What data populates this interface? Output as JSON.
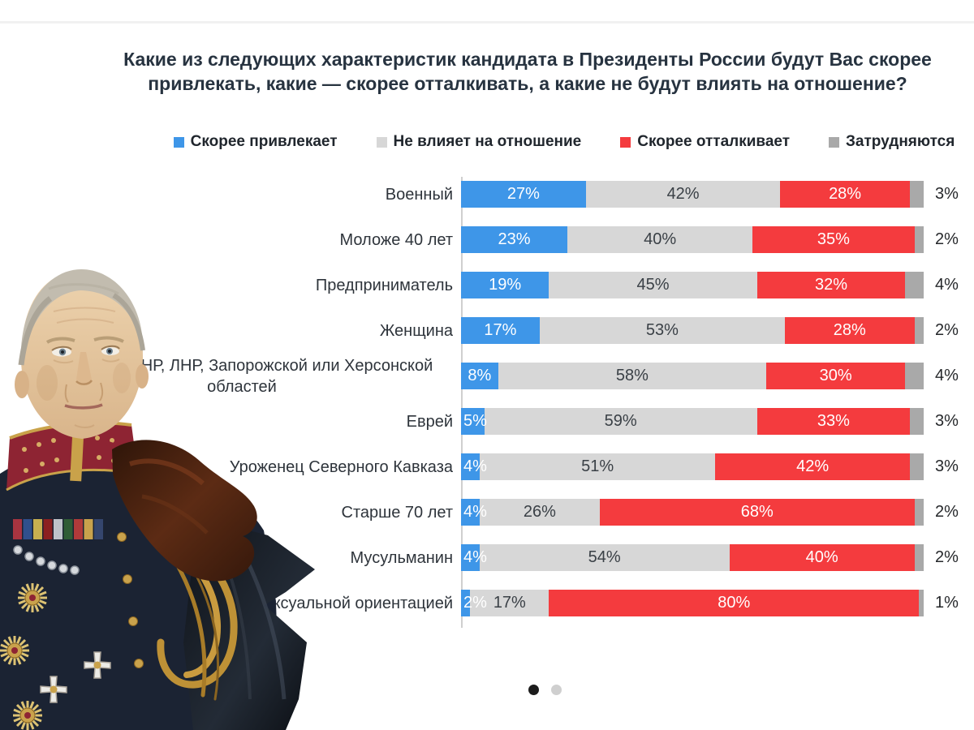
{
  "slide": {
    "title": "Какие из следующих характеристик кандидата в Президенты России будут Вас скорее привлекать, какие — скорее отталкивать, а какие не будут влиять на отношение?"
  },
  "legend": [
    {
      "label": "Скорее привлекает",
      "color": "#3E96E8"
    },
    {
      "label": "Не влияет на отношение",
      "color": "#D7D7D7"
    },
    {
      "label": "Скорее отталкивает",
      "color": "#F43B3E"
    },
    {
      "label": "Затрудняются",
      "color": "#A9A9A9"
    }
  ],
  "chart_data": {
    "type": "bar",
    "variant": "horizontal-stacked",
    "unit": "%",
    "xlim": [
      0,
      100
    ],
    "grid": false,
    "legend_position": "top",
    "categories": [
      "Военный",
      "Моложе 40 лет",
      "Предприниматель",
      "Женщина",
      "Уроженец ДНР, ЛНР, Запорожской или Херсонской областей",
      "Еврей",
      "Уроженец Северного Кавказа",
      "Старше 70 лет",
      "Мусульманин",
      "С нетрадиционной сексуальной ориентацией"
    ],
    "series": [
      {
        "name": "Скорее привлекает",
        "color": "#3E96E8",
        "text_color": "#FFFFFF",
        "values": [
          27,
          23,
          19,
          17,
          8,
          5,
          4,
          4,
          4,
          2
        ]
      },
      {
        "name": "Не влияет на отношение",
        "color": "#D7D7D7",
        "text_color": "#3A4046",
        "values": [
          42,
          40,
          45,
          53,
          58,
          59,
          51,
          26,
          54,
          17
        ]
      },
      {
        "name": "Скорее отталкивает",
        "color": "#F43B3E",
        "text_color": "#FFFFFF",
        "values": [
          28,
          35,
          32,
          28,
          30,
          33,
          42,
          68,
          40,
          80
        ]
      },
      {
        "name": "Затрудняются",
        "color": "#A9A9A9",
        "text_color": null,
        "labels_outside": true,
        "values": [
          3,
          2,
          4,
          2,
          4,
          3,
          3,
          2,
          2,
          1
        ]
      }
    ]
  },
  "portrait": {
    "name": "putin-imperial-portrait"
  },
  "pagination": {
    "active_color": "#1C1C1C",
    "inactive_color": "#CFCFCF",
    "dots": [
      {
        "state": "active"
      },
      {
        "state": "inactive"
      }
    ]
  }
}
